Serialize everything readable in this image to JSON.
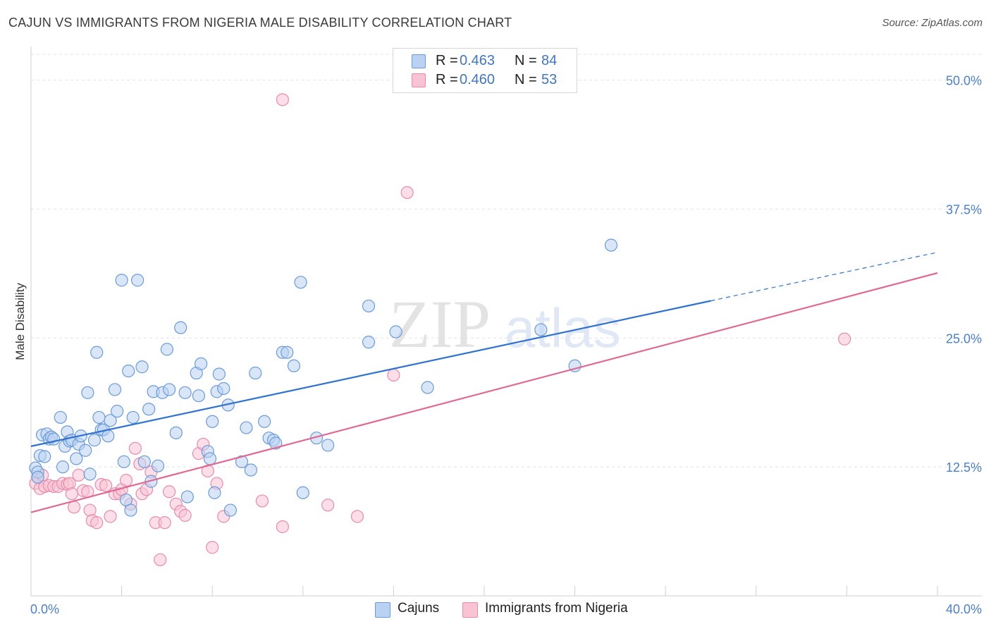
{
  "title": "CAJUN VS IMMIGRANTS FROM NIGERIA MALE DISABILITY CORRELATION CHART",
  "source": "Source: ZipAtlas.com",
  "watermark": {
    "zip": "ZIP",
    "atlas": "atlas"
  },
  "legend": {
    "rows": [
      {
        "r_label": "R =",
        "r_value": "0.463",
        "n_label": "N =",
        "n_value": "84"
      },
      {
        "r_label": "R =",
        "r_value": "0.460",
        "n_label": "N =",
        "n_value": "53"
      }
    ]
  },
  "bottom_legend": {
    "cajuns": "Cajuns",
    "nigeria": "Immigrants from Nigeria"
  },
  "colors": {
    "cajun_fill": "#b9d2f2",
    "cajun_stroke": "#6c9bd8",
    "cajun_line": "#2f72d0",
    "nigeria_fill": "#f8c3d3",
    "nigeria_stroke": "#e98cab",
    "nigeria_line": "#e06a94",
    "axis_label": "#4a7fcf",
    "grid": "#e2e2e2"
  },
  "chart_data": {
    "type": "scatter",
    "title": "CAJUN VS IMMIGRANTS FROM NIGERIA MALE DISABILITY CORRELATION CHART",
    "xlabel": "",
    "ylabel": "Male Disability",
    "xlim": [
      0,
      40
    ],
    "ylim": [
      0,
      52.5
    ],
    "x_tick_labels": [
      "0.0%",
      "40.0%"
    ],
    "y_ticks": [
      12.5,
      25.0,
      37.5,
      50.0
    ],
    "y_tick_labels": [
      "12.5%",
      "25.0%",
      "37.5%",
      "50.0%"
    ],
    "grid": true,
    "legend_position": "top-center",
    "series": [
      {
        "name": "Cajuns",
        "R": 0.463,
        "N": 84,
        "trend": {
          "x": [
            0,
            30
          ],
          "y": [
            14.5,
            28.6
          ],
          "dashed_extension": {
            "x": [
              30,
              40
            ],
            "y": [
              28.6,
              33.3
            ]
          }
        },
        "points": [
          [
            0.2,
            12.4
          ],
          [
            0.3,
            12.0
          ],
          [
            0.3,
            11.5
          ],
          [
            0.4,
            13.6
          ],
          [
            0.5,
            15.6
          ],
          [
            0.6,
            13.5
          ],
          [
            0.7,
            15.7
          ],
          [
            0.8,
            15.2
          ],
          [
            0.9,
            15.4
          ],
          [
            1.0,
            15.2
          ],
          [
            1.3,
            17.3
          ],
          [
            1.4,
            12.5
          ],
          [
            1.5,
            14.5
          ],
          [
            1.6,
            15.9
          ],
          [
            1.7,
            15.0
          ],
          [
            1.8,
            15.1
          ],
          [
            2.0,
            13.3
          ],
          [
            2.1,
            14.7
          ],
          [
            2.2,
            15.5
          ],
          [
            2.4,
            14.1
          ],
          [
            2.5,
            19.7
          ],
          [
            2.6,
            11.8
          ],
          [
            2.8,
            15.1
          ],
          [
            2.9,
            23.6
          ],
          [
            3.0,
            17.3
          ],
          [
            3.1,
            16.1
          ],
          [
            3.2,
            16.1
          ],
          [
            3.4,
            15.5
          ],
          [
            3.5,
            17.0
          ],
          [
            3.7,
            20.0
          ],
          [
            3.8,
            17.9
          ],
          [
            4.0,
            30.6
          ],
          [
            4.1,
            13.0
          ],
          [
            4.2,
            9.3
          ],
          [
            4.3,
            21.8
          ],
          [
            4.4,
            8.3
          ],
          [
            4.5,
            17.3
          ],
          [
            4.7,
            30.6
          ],
          [
            4.9,
            22.2
          ],
          [
            5.0,
            13.0
          ],
          [
            5.2,
            18.1
          ],
          [
            5.3,
            11.1
          ],
          [
            5.4,
            19.8
          ],
          [
            5.6,
            12.6
          ],
          [
            5.8,
            19.7
          ],
          [
            6.0,
            23.9
          ],
          [
            6.1,
            20.0
          ],
          [
            6.4,
            15.8
          ],
          [
            6.6,
            26.0
          ],
          [
            6.8,
            19.7
          ],
          [
            6.9,
            9.6
          ],
          [
            7.3,
            21.6
          ],
          [
            7.4,
            19.4
          ],
          [
            7.5,
            22.5
          ],
          [
            7.8,
            14.0
          ],
          [
            7.9,
            13.3
          ],
          [
            8.0,
            16.9
          ],
          [
            8.1,
            10.0
          ],
          [
            8.2,
            19.8
          ],
          [
            8.3,
            21.5
          ],
          [
            8.5,
            20.1
          ],
          [
            8.7,
            18.5
          ],
          [
            8.8,
            8.3
          ],
          [
            9.3,
            13.0
          ],
          [
            9.5,
            16.3
          ],
          [
            9.7,
            12.2
          ],
          [
            9.9,
            21.6
          ],
          [
            10.3,
            16.9
          ],
          [
            10.5,
            15.3
          ],
          [
            10.7,
            15.1
          ],
          [
            10.8,
            14.8
          ],
          [
            11.1,
            23.6
          ],
          [
            11.3,
            23.6
          ],
          [
            11.6,
            22.3
          ],
          [
            11.9,
            30.4
          ],
          [
            12.0,
            10.0
          ],
          [
            12.6,
            15.3
          ],
          [
            13.1,
            14.6
          ],
          [
            14.9,
            28.1
          ],
          [
            14.9,
            24.6
          ],
          [
            16.1,
            25.6
          ],
          [
            17.5,
            20.2
          ],
          [
            22.5,
            25.8
          ],
          [
            24.0,
            22.3
          ],
          [
            25.6,
            34.0
          ]
        ]
      },
      {
        "name": "Immigrants from Nigeria",
        "R": 0.46,
        "N": 53,
        "trend": {
          "x": [
            0,
            40
          ],
          "y": [
            8.1,
            31.3
          ]
        },
        "points": [
          [
            0.2,
            10.9
          ],
          [
            0.3,
            11.5
          ],
          [
            0.4,
            10.4
          ],
          [
            0.5,
            11.7
          ],
          [
            0.6,
            10.6
          ],
          [
            0.8,
            10.7
          ],
          [
            1.0,
            10.6
          ],
          [
            1.2,
            10.6
          ],
          [
            1.4,
            10.9
          ],
          [
            1.6,
            10.8
          ],
          [
            1.7,
            10.9
          ],
          [
            1.8,
            9.9
          ],
          [
            1.9,
            8.6
          ],
          [
            2.1,
            11.7
          ],
          [
            2.3,
            10.2
          ],
          [
            2.5,
            10.1
          ],
          [
            2.6,
            8.3
          ],
          [
            2.7,
            7.3
          ],
          [
            2.9,
            7.1
          ],
          [
            3.1,
            10.8
          ],
          [
            3.3,
            10.7
          ],
          [
            3.5,
            7.7
          ],
          [
            3.7,
            9.9
          ],
          [
            3.9,
            9.9
          ],
          [
            4.0,
            10.3
          ],
          [
            4.2,
            11.2
          ],
          [
            4.4,
            8.9
          ],
          [
            4.6,
            14.3
          ],
          [
            4.8,
            12.8
          ],
          [
            4.9,
            9.9
          ],
          [
            5.1,
            10.3
          ],
          [
            5.3,
            12.0
          ],
          [
            5.5,
            7.1
          ],
          [
            5.7,
            3.5
          ],
          [
            5.9,
            7.1
          ],
          [
            6.1,
            10.1
          ],
          [
            6.4,
            8.9
          ],
          [
            6.6,
            8.2
          ],
          [
            6.8,
            7.8
          ],
          [
            7.4,
            13.8
          ],
          [
            7.6,
            14.7
          ],
          [
            7.8,
            12.1
          ],
          [
            8.0,
            4.7
          ],
          [
            8.2,
            10.9
          ],
          [
            8.5,
            7.7
          ],
          [
            10.2,
            9.2
          ],
          [
            11.1,
            6.7
          ],
          [
            11.1,
            48.1
          ],
          [
            13.1,
            8.8
          ],
          [
            14.4,
            7.7
          ],
          [
            16.0,
            21.4
          ],
          [
            16.6,
            39.1
          ],
          [
            35.9,
            24.9
          ]
        ]
      }
    ]
  }
}
